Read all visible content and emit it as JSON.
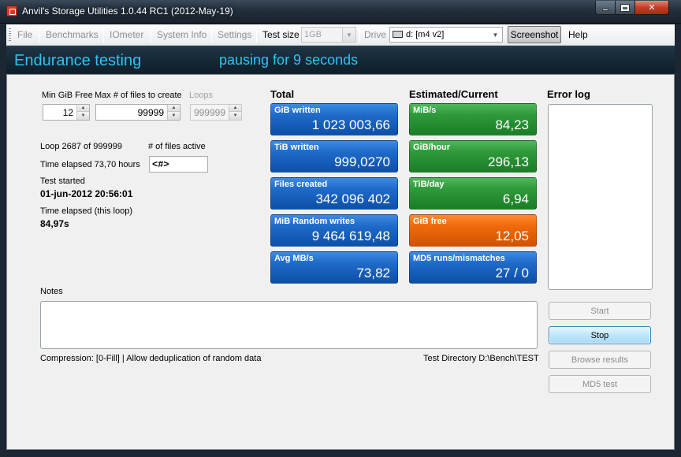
{
  "window": {
    "title": "Anvil's Storage Utilities 1.0.44 RC1 (2012-May-19)"
  },
  "menu": {
    "file": "File",
    "benchmarks": "Benchmarks",
    "iometer": "IOmeter",
    "system_info": "System Info",
    "settings": "Settings",
    "test_size_label": "Test size",
    "test_size_value": "1GB",
    "drive_label": "Drive",
    "drive_value": "d: [m4 v2]",
    "screenshot": "Screenshot",
    "help": "Help"
  },
  "header": {
    "title": "Endurance testing",
    "status": "pausing for 9 seconds"
  },
  "params": {
    "min_gib_free_label": "Min GiB Free",
    "min_gib_free_value": "12",
    "max_files_label": "Max # of files to create",
    "max_files_value": "99999",
    "loops_label": "Loops",
    "loops_value": "999999"
  },
  "progress": {
    "loop_text": "Loop 2687 of 999999",
    "files_active_label": "# of files active",
    "files_active_value": "<#>",
    "time_elapsed_text": "Time elapsed 73,70 hours",
    "test_started_label": "Test started",
    "test_started_value": "01-jun-2012 20:56:01",
    "loop_elapsed_label": "Time elapsed (this loop)",
    "loop_elapsed_value": "84,97s"
  },
  "total": {
    "heading": "Total",
    "tiles": [
      {
        "label": "GiB written",
        "value": "1 023 003,66"
      },
      {
        "label": "TiB written",
        "value": "999,0270"
      },
      {
        "label": "Files created",
        "value": "342 096 402"
      },
      {
        "label": "MiB Random writes",
        "value": "9 464 619,48"
      },
      {
        "label": "Avg MB/s",
        "value": "73,82"
      }
    ]
  },
  "estimated": {
    "heading": "Estimated/Current",
    "tiles": [
      {
        "label": "MiB/s",
        "value": "84,23"
      },
      {
        "label": "GiB/hour",
        "value": "296,13"
      },
      {
        "label": "TiB/day",
        "value": "6,94"
      },
      {
        "label": "GiB free",
        "value": "12,05"
      },
      {
        "label": "MD5 runs/mismatches",
        "value": "27 / 0"
      }
    ]
  },
  "error_log": {
    "heading": "Error log"
  },
  "notes": {
    "label": "Notes"
  },
  "footer": {
    "compression": "Compression: [0-Fill]  |  Allow deduplication of random data",
    "test_directory": "Test Directory D:\\Bench\\TEST"
  },
  "buttons": {
    "start": "Start",
    "stop": "Stop",
    "browse_results": "Browse results",
    "md5_test": "MD5 test"
  },
  "colors": {
    "header_text": "#2fc1f2",
    "tile_blue": "#1f6bc9",
    "tile_green": "#2e9a3a",
    "tile_orange": "#f06a0b"
  }
}
